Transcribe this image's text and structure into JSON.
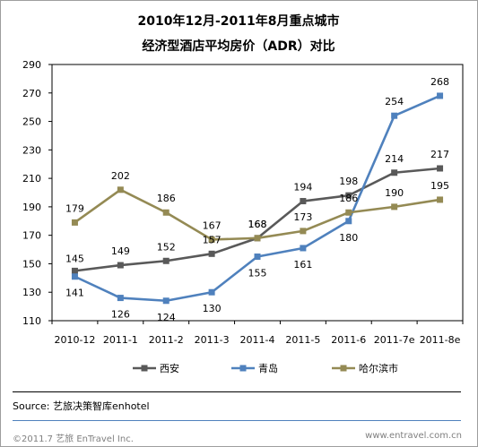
{
  "chart_data": {
    "type": "line",
    "title_lines": [
      "2010年12月-2011年8月重点城市",
      "经济型酒店平均房价（ADR）对比"
    ],
    "categories": [
      "2010-12",
      "2011-1",
      "2011-2",
      "2011-3",
      "2011-4",
      "2011-5",
      "2011-6",
      "2011-7e",
      "2011-8e"
    ],
    "ylim": [
      110,
      290
    ],
    "yticks": [
      110,
      130,
      150,
      170,
      190,
      210,
      230,
      250,
      270,
      290
    ],
    "grid": false,
    "legend_position": "bottom",
    "series": [
      {
        "name": "西安",
        "color": "#595959",
        "values": [
          145,
          149,
          152,
          157,
          168,
          194,
          198,
          214,
          217
        ]
      },
      {
        "name": "青岛",
        "color": "#4f81bd",
        "values": [
          141,
          126,
          124,
          130,
          155,
          161,
          180,
          254,
          268
        ]
      },
      {
        "name": "哈尔滨市",
        "color": "#948a54",
        "values": [
          179,
          202,
          186,
          167,
          168,
          173,
          186,
          190,
          195
        ]
      }
    ]
  },
  "source": "Source: 艺旅决策智库enhotel",
  "footer": {
    "left": "©2011.7  艺旅 EnTravel Inc.",
    "right": "www.entravel.com.cn"
  },
  "colors": {
    "frame": "#9e9e9e",
    "footer_rule": "#4f81bd"
  }
}
